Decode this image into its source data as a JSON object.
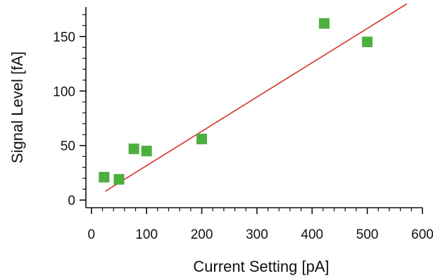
{
  "chart_data": {
    "type": "scatter",
    "title": "",
    "xlabel": "Current Setting [pA]",
    "ylabel": "Signal Level [fA]",
    "xlim": [
      -10,
      600
    ],
    "ylim": [
      -7,
      177
    ],
    "xticks": [
      0,
      100,
      200,
      300,
      400,
      500,
      600
    ],
    "yticks": [
      0,
      50,
      100,
      150
    ],
    "grid": false,
    "legend": "none",
    "series": [
      {
        "type": "scatter",
        "marker": "square",
        "color": "#4daf3e",
        "x": [
          23,
          50,
          77,
          100,
          200,
          422,
          500
        ],
        "y": [
          21,
          19,
          47,
          45,
          56,
          162,
          145
        ]
      },
      {
        "type": "line",
        "color": "#d7302a",
        "x": [
          25,
          572
        ],
        "y": [
          8,
          180
        ]
      }
    ]
  }
}
